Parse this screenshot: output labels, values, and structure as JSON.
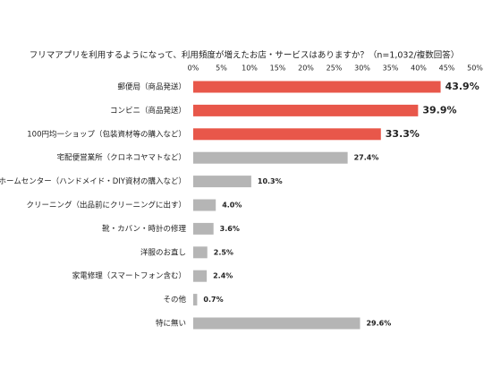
{
  "chart_data": {
    "type": "bar",
    "orientation": "horizontal",
    "title": "フリマアプリを利用するようになって、利用頻度が増えたお店・サービスはありますか？（n=1,032/複数回答）",
    "categories": [
      "郵便局（商品発送）",
      "コンビニ（商品発送）",
      "100円均一ショップ（包装資材等の購入など）",
      "宅配便営業所（クロネコヤマトなど）",
      "ホームセンター（ハンドメイド・DIY資材の購入など）",
      "クリーニング（出品前にクリーニングに出す）",
      "靴・カバン・時計の修理",
      "洋服のお直し",
      "家電修理（スマートフォン含む）",
      "その他",
      "特に無い"
    ],
    "values": [
      43.9,
      39.9,
      33.3,
      27.4,
      10.3,
      4.0,
      3.6,
      2.5,
      2.4,
      0.7,
      29.6
    ],
    "value_labels": [
      "43.9%",
      "39.9%",
      "33.3%",
      "27.4%",
      "10.3%",
      "4.0%",
      "3.6%",
      "2.5%",
      "2.4%",
      "0.7%",
      "29.6%"
    ],
    "colors": [
      "#e8574a",
      "#e8574a",
      "#e8574a",
      "#b5b5b5",
      "#b5b5b5",
      "#b5b5b5",
      "#b5b5b5",
      "#b5b5b5",
      "#b5b5b5",
      "#b5b5b5",
      "#b5b5b5"
    ],
    "value_label_colors": [
      "#e8574a",
      "#e8574a",
      "#e8574a",
      "#333333",
      "#333333",
      "#333333",
      "#333333",
      "#333333",
      "#333333",
      "#333333",
      "#333333"
    ],
    "xlim": [
      0,
      50
    ],
    "xticks": [
      {
        "value": 0,
        "label": "0%"
      },
      {
        "value": 5,
        "label": "5%"
      },
      {
        "value": 10,
        "label": "10%"
      },
      {
        "value": 15,
        "label": "15%"
      },
      {
        "value": 20,
        "label": "20%"
      },
      {
        "value": 25,
        "label": "25%"
      },
      {
        "value": 30,
        "label": "30%"
      },
      {
        "value": 35,
        "label": "35%"
      },
      {
        "value": 40,
        "label": "40%"
      },
      {
        "value": 45,
        "label": "45%"
      },
      {
        "value": 50,
        "label": "50%"
      }
    ],
    "xaxis_position": "top",
    "grid": false
  }
}
